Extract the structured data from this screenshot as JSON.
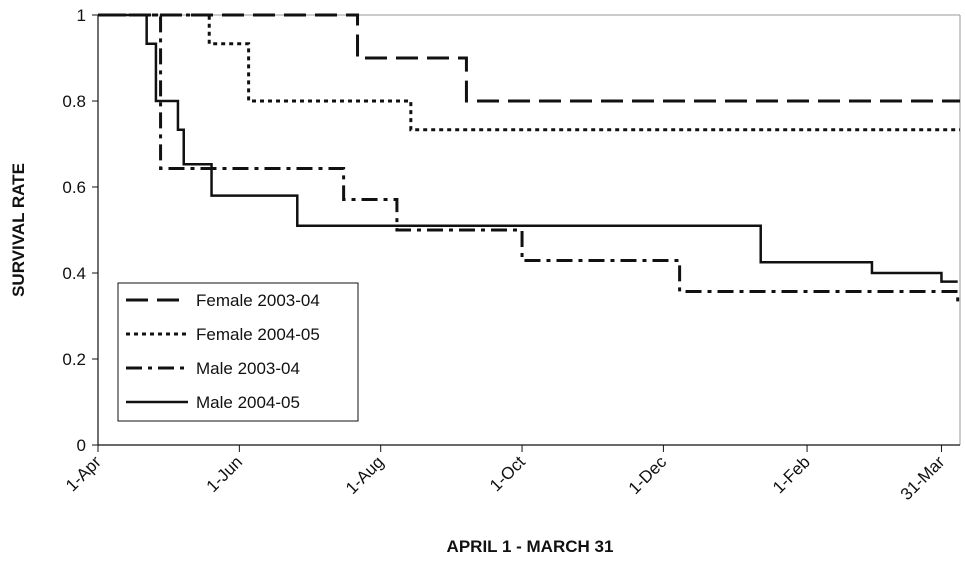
{
  "chart_data": {
    "type": "step-line",
    "x_label": "APRIL 1 - MARCH 31",
    "y_label": "SURVIVAL RATE",
    "xlim": [
      0,
      372
    ],
    "ylim": [
      0,
      1
    ],
    "xticks": [
      {
        "value": 0,
        "label": "1-Apr"
      },
      {
        "value": 61,
        "label": "1-Jun"
      },
      {
        "value": 122,
        "label": "1-Aug"
      },
      {
        "value": 183,
        "label": "1-Oct"
      },
      {
        "value": 244,
        "label": "1-Dec"
      },
      {
        "value": 306,
        "label": "1-Feb"
      },
      {
        "value": 364,
        "label": "31-Mar"
      }
    ],
    "yticks": [
      0,
      0.2,
      0.4,
      0.6,
      0.8,
      1
    ],
    "legend": "lower-left",
    "series": [
      {
        "name": "Female 2003-04",
        "color": "#111111",
        "dash": "long-dash",
        "x": [
          0,
          112,
          159,
          372
        ],
        "values": [
          1,
          0.9,
          0.8,
          0.8
        ]
      },
      {
        "name": "Female 2004-05",
        "color": "#111111",
        "dash": "dotted",
        "x": [
          0,
          48,
          65,
          135,
          372
        ],
        "values": [
          1,
          0.933,
          0.8,
          0.733,
          0.733
        ]
      },
      {
        "name": "Male 2003-04",
        "color": "#111111",
        "dash": "dash-dot",
        "x": [
          0,
          27,
          106,
          129,
          183,
          251,
          367,
          371
        ],
        "values": [
          1,
          0.643,
          0.571,
          0.5,
          0.429,
          0.357,
          0.357,
          0.33
        ]
      },
      {
        "name": "Male 2004-05",
        "color": "#111111",
        "dash": "solid",
        "x": [
          0,
          21,
          25,
          34.5,
          37,
          49,
          86,
          286,
          334,
          364,
          371
        ],
        "values": [
          1,
          0.933,
          0.8,
          0.733,
          0.653,
          0.58,
          0.51,
          0.425,
          0.4,
          0.38,
          0.38
        ]
      }
    ]
  }
}
